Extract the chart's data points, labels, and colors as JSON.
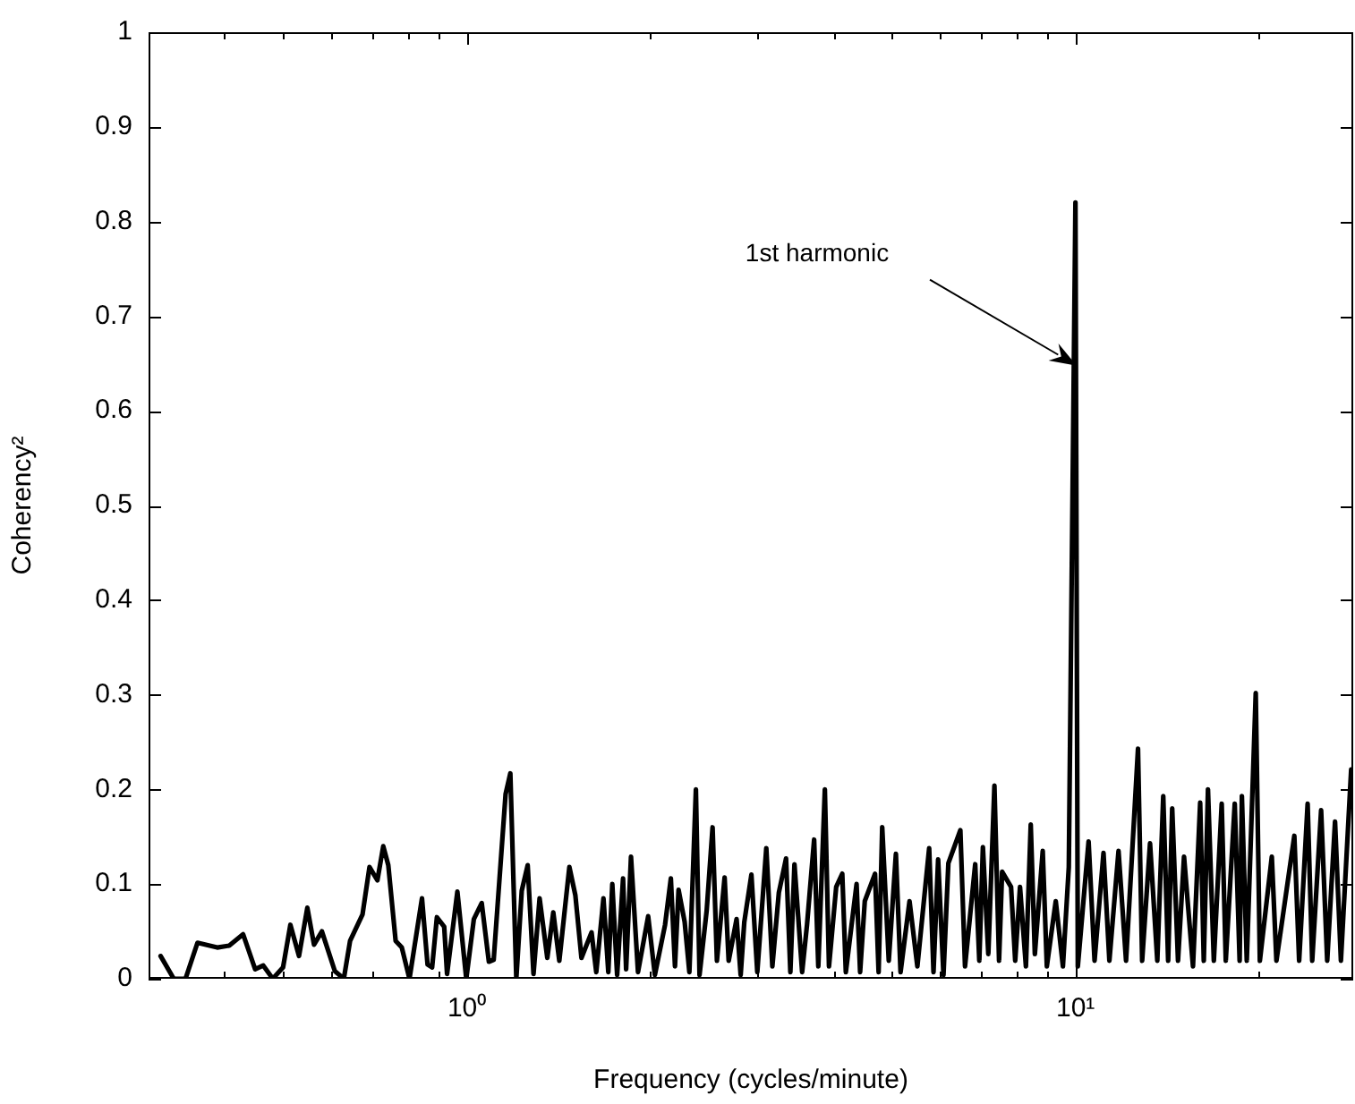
{
  "chart_data": {
    "type": "line",
    "xlabel": "Frequency (cycles/minute)",
    "ylabel": "Coherency²",
    "log": "x",
    "color": "#000000",
    "xlim": [
      0.3,
      28.6
    ],
    "ylim": [
      0,
      1
    ],
    "xticks": [
      {
        "value": 0.3,
        "label": null
      },
      {
        "value": 0.4,
        "label": null
      },
      {
        "value": 0.5,
        "label": null
      },
      {
        "value": 0.6,
        "label": null
      },
      {
        "value": 0.7,
        "label": null
      },
      {
        "value": 0.8,
        "label": null
      },
      {
        "value": 0.9,
        "label": null
      },
      {
        "value": 1,
        "label": "10⁰"
      },
      {
        "value": 2,
        "label": null
      },
      {
        "value": 3,
        "label": null
      },
      {
        "value": 4,
        "label": null
      },
      {
        "value": 5,
        "label": null
      },
      {
        "value": 6,
        "label": null
      },
      {
        "value": 7,
        "label": null
      },
      {
        "value": 8,
        "label": null
      },
      {
        "value": 9,
        "label": null
      },
      {
        "value": 10,
        "label": "10¹"
      },
      {
        "value": 20,
        "label": null
      }
    ],
    "yticks": [
      0,
      0.1,
      0.2,
      0.3,
      0.4,
      0.5,
      0.6,
      0.7,
      0.8,
      0.9,
      1
    ],
    "annotations": [
      "1st harmonic"
    ],
    "x": [
      0.314,
      0.33,
      0.345,
      0.361,
      0.389,
      0.407,
      0.429,
      0.449,
      0.463,
      0.48,
      0.499,
      0.513,
      0.53,
      0.547,
      0.561,
      0.578,
      0.607,
      0.628,
      0.643,
      0.674,
      0.692,
      0.713,
      0.729,
      0.743,
      0.764,
      0.782,
      0.805,
      0.844,
      0.862,
      0.877,
      0.893,
      0.918,
      0.928,
      0.965,
      0.998,
      1.027,
      1.058,
      1.087,
      1.107,
      1.158,
      1.179,
      1.206,
      1.231,
      1.259,
      1.287,
      1.317,
      1.356,
      1.387,
      1.419,
      1.474,
      1.508,
      1.543,
      1.603,
      1.632,
      1.677,
      1.708,
      1.734,
      1.766,
      1.806,
      1.827,
      1.861,
      1.911,
      1.986,
      2.037,
      2.117,
      2.164,
      2.198,
      2.228,
      2.28,
      2.321,
      2.379,
      2.412,
      2.478,
      2.534,
      2.576,
      2.652,
      2.693,
      2.775,
      2.818,
      2.857,
      2.935,
      3.001,
      3.105,
      3.177,
      3.256,
      3.346,
      3.401,
      3.454,
      3.556,
      3.622,
      3.721,
      3.78,
      3.875,
      3.936,
      4.045,
      4.139,
      4.195,
      4.369,
      4.428,
      4.507,
      4.685,
      4.749,
      4.814,
      4.935,
      5.07,
      5.16,
      5.338,
      5.499,
      5.75,
      5.845,
      5.948,
      6.07,
      6.183,
      6.47,
      6.585,
      6.844,
      6.951,
      7.046,
      7.192,
      7.36,
      7.49,
      7.577,
      7.838,
      7.962,
      8.108,
      8.291,
      8.444,
      8.576,
      8.836,
      8.974,
      9.282,
      9.537,
      9.752,
      10,
      10.09,
      10.51,
      10.75,
      11.12,
      11.37,
      11.77,
      12.11,
      12.67,
      12.87,
      13.26,
      13.63,
      13.94,
      14.2,
      14.42,
      14.74,
      15.08,
      15.6,
      16.03,
      16.25,
      16.51,
      16.88,
      17.39,
      17.66,
      18.27,
      18.61,
      18.77,
      19.12,
      19.78,
      20.09,
      21.02,
      21.39,
      22.89,
      23.31,
      24.07,
      24.49,
      25.33,
      25.92,
      26.7,
      27.3,
      28.38
    ],
    "values": [
      0.024,
      0,
      0,
      0.038,
      0.033,
      0.035,
      0.047,
      0.01,
      0.014,
      0,
      0.012,
      0.057,
      0.024,
      0.075,
      0.036,
      0.05,
      0.008,
      0,
      0.04,
      0.068,
      0.118,
      0.104,
      0.14,
      0.12,
      0.04,
      0.033,
      0,
      0.085,
      0.015,
      0.012,
      0.065,
      0.055,
      0.005,
      0.092,
      0,
      0.063,
      0.08,
      0.018,
      0.02,
      0.195,
      0.217,
      0,
      0.093,
      0.12,
      0.005,
      0.085,
      0.022,
      0.07,
      0.019,
      0.118,
      0.088,
      0.022,
      0.049,
      0.007,
      0.085,
      0.007,
      0.1,
      0.004,
      0.106,
      0.01,
      0.129,
      0.007,
      0.066,
      0.004,
      0.057,
      0.106,
      0.013,
      0.094,
      0.06,
      0.007,
      0.2,
      0.004,
      0.072,
      0.16,
      0.019,
      0.107,
      0.019,
      0.063,
      0.004,
      0.06,
      0.11,
      0.007,
      0.138,
      0.013,
      0.091,
      0.127,
      0.007,
      0.121,
      0.007,
      0.057,
      0.147,
      0.013,
      0.2,
      0.013,
      0.097,
      0.111,
      0.007,
      0.1,
      0.007,
      0.082,
      0.111,
      0.007,
      0.16,
      0.019,
      0.132,
      0.007,
      0.082,
      0.013,
      0.138,
      0.007,
      0.126,
      0.004,
      0.122,
      0.157,
      0.013,
      0.121,
      0.019,
      0.139,
      0.026,
      0.204,
      0.019,
      0.113,
      0.097,
      0.019,
      0.097,
      0.013,
      0.163,
      0.026,
      0.135,
      0.013,
      0.082,
      0.013,
      0.118,
      0.82,
      0.013,
      0.145,
      0.019,
      0.133,
      0.019,
      0.135,
      0.019,
      0.243,
      0.019,
      0.143,
      0.019,
      0.193,
      0.019,
      0.18,
      0.019,
      0.129,
      0.013,
      0.186,
      0.019,
      0.2,
      0.019,
      0.185,
      0.019,
      0.185,
      0.019,
      0.193,
      0.019,
      0.302,
      0.019,
      0.129,
      0.019,
      0.151,
      0.019,
      0.185,
      0.019,
      0.178,
      0.019,
      0.166,
      0.019,
      0.221
    ]
  }
}
